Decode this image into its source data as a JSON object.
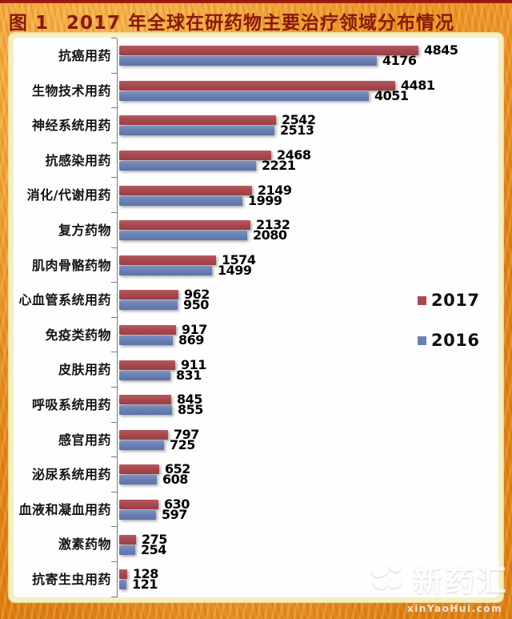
{
  "header": {
    "figure_label": "图 1",
    "title": "2017 年全球在研药物主要治疗领域分布情况"
  },
  "chart_data": {
    "type": "bar",
    "orientation": "horizontal",
    "title": "2017 年全球在研药物主要治疗领域分布情况",
    "xlabel": "",
    "ylabel": "",
    "xlim": [
      0,
      5000
    ],
    "grid": false,
    "legend_position": "right-middle",
    "categories": [
      "抗癌用药",
      "生物技术用药",
      "神经系统用药",
      "抗感染用药",
      "消化/代谢用药",
      "复方药物",
      "肌肉骨骼药物",
      "心血管系统用药",
      "免疫类药物",
      "皮肤用药",
      "呼吸系统用药",
      "感官用药",
      "泌尿系统用药",
      "血液和凝血用药",
      "激素药物",
      "抗寄生虫用药"
    ],
    "series": [
      {
        "name": "2017",
        "color": "#A84A50",
        "values": [
          4845,
          4481,
          2542,
          2468,
          2149,
          2132,
          1574,
          962,
          917,
          911,
          845,
          797,
          652,
          630,
          275,
          128
        ]
      },
      {
        "name": "2016",
        "color": "#6A81B4",
        "values": [
          4176,
          4051,
          2513,
          2221,
          1999,
          2080,
          1499,
          950,
          869,
          831,
          855,
          725,
          608,
          597,
          254,
          121
        ]
      }
    ]
  },
  "legend": [
    {
      "label": "2017",
      "color": "#A84A50"
    },
    {
      "label": "2016",
      "color": "#6A81B4"
    }
  ],
  "watermark": {
    "name": "新药汇",
    "domain": "xinYaoHui.com"
  },
  "colors": {
    "title": "#8A190C",
    "frame_orange": "#E8891B",
    "panel_cream": "#F7EFC0",
    "top_strip_red": "#9E1B0E"
  }
}
